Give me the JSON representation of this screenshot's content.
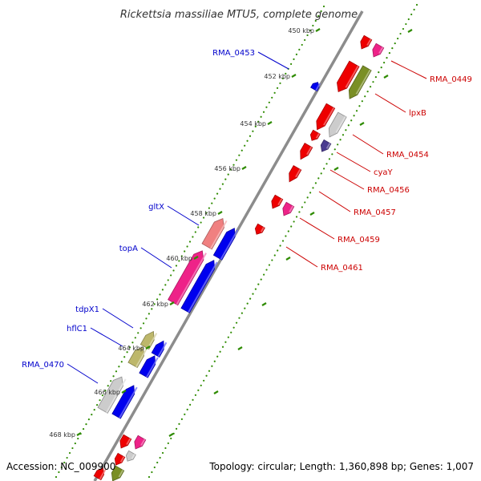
{
  "title": "Rickettsia massiliae MTU5, complete genome",
  "footer": {
    "accession": "Accession: NC_009900",
    "summary": "Topology: circular; Length: 1,360,898 bp; Genes: 1,007"
  },
  "ticks": [
    "450 kbp",
    "452 kbp",
    "454 kbp",
    "456 kbp",
    "458 kbp",
    "460 kbp",
    "462 kbp",
    "464 kbp",
    "466 kbp",
    "468 kbp"
  ],
  "forward_labels": [
    "RMA_0449",
    "lpxB",
    "RMA_0454",
    "cyaY",
    "RMA_0456",
    "RMA_0457",
    "RMA_0459",
    "RMA_0461"
  ],
  "reverse_labels": [
    "RMA_0453",
    "gltX",
    "topA",
    "tdpX1",
    "hflC1",
    "RMA_0470"
  ],
  "colors": {
    "forward_label": "#cc0000",
    "reverse_label": "#0000cc",
    "backbone": "#888888",
    "tick": "#2e8b00",
    "gene_red": "#ee0000",
    "gene_blue": "#0000ee",
    "gene_pink": "#ee2288",
    "gene_olive": "#7a8f25",
    "gene_grey": "#cccccc",
    "gene_khaki": "#bdb76b",
    "gene_salmon": "#f08080",
    "gene_navy": "#4b3c90"
  }
}
